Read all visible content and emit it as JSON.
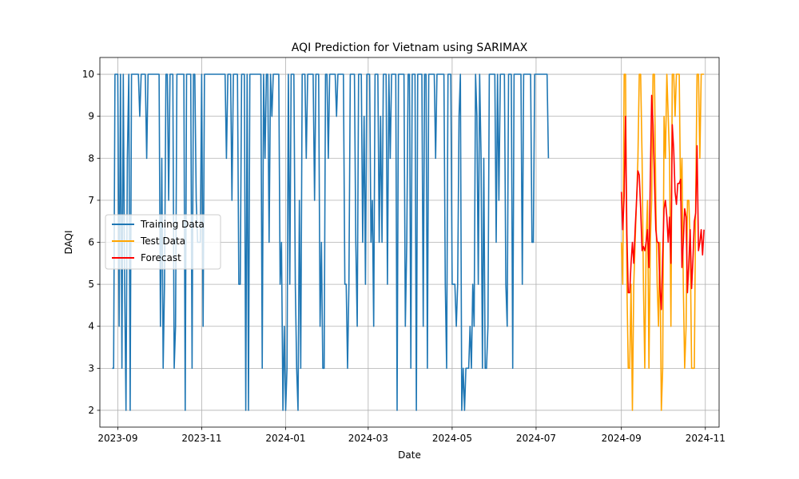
{
  "chart_data": {
    "type": "line",
    "title": "AQI Prediction for Vietnam using SARIMAX",
    "xlabel": "Date",
    "ylabel": "DAQI",
    "ylim": [
      1.6,
      10.4
    ],
    "yticks": [
      2,
      3,
      4,
      5,
      6,
      7,
      8,
      9,
      10
    ],
    "xlim": [
      "2023-08-19",
      "2024-11-11"
    ],
    "xticks": [
      {
        "date": "2023-09-01",
        "label": "2023-09"
      },
      {
        "date": "2023-11-01",
        "label": "2023-11"
      },
      {
        "date": "2024-01-01",
        "label": "2024-01"
      },
      {
        "date": "2024-03-01",
        "label": "2024-03"
      },
      {
        "date": "2024-05-01",
        "label": "2024-05"
      },
      {
        "date": "2024-07-01",
        "label": "2024-07"
      },
      {
        "date": "2024-09-01",
        "label": "2024-09"
      },
      {
        "date": "2024-11-01",
        "label": "2024-11"
      }
    ],
    "grid": true,
    "legend_position": "center-left",
    "series": [
      {
        "name": "Training Data",
        "color": "#1f77b4",
        "start": "2023-08-28",
        "step_days": 1,
        "values": [
          3,
          3,
          10,
          10,
          10,
          4,
          10,
          3,
          10,
          5,
          2,
          8,
          10,
          2,
          10,
          10,
          10,
          10,
          10,
          10,
          9,
          10,
          10,
          10,
          10,
          8,
          10,
          10,
          10,
          10,
          10,
          10,
          10,
          10,
          10,
          4,
          8,
          3,
          5,
          10,
          10,
          7,
          10,
          10,
          10,
          3,
          4,
          10,
          10,
          10,
          10,
          10,
          10,
          2,
          10,
          10,
          10,
          10,
          3,
          10,
          10,
          7,
          6,
          6,
          6,
          10,
          4,
          10,
          10,
          10,
          10,
          10,
          10,
          10,
          10,
          10,
          10,
          10,
          10,
          10,
          10,
          10,
          10,
          8,
          10,
          10,
          10,
          7,
          10,
          10,
          10,
          10,
          5,
          5,
          10,
          10,
          10,
          2,
          10,
          2,
          10,
          10,
          10,
          10,
          10,
          10,
          10,
          10,
          10,
          3,
          10,
          8,
          10,
          10,
          6,
          10,
          9,
          10,
          10,
          10,
          10,
          10,
          5,
          6,
          2,
          4,
          2,
          3,
          10,
          5,
          10,
          10,
          10,
          5,
          3,
          2,
          7,
          3,
          10,
          10,
          10,
          8,
          10,
          10,
          10,
          10,
          10,
          7,
          10,
          10,
          10,
          4,
          6,
          3,
          3,
          10,
          10,
          8,
          10,
          10,
          10,
          10,
          10,
          9,
          10,
          10,
          10,
          10,
          10,
          5,
          5,
          3,
          5,
          10,
          10,
          10,
          10,
          6,
          4,
          10,
          10,
          10,
          6,
          9,
          5,
          10,
          10,
          10,
          6,
          7,
          4,
          10,
          10,
          10,
          6,
          9,
          6,
          10,
          10,
          10,
          5,
          10,
          8,
          10,
          10,
          10,
          10,
          2,
          10,
          10,
          10,
          10,
          10,
          4,
          6,
          10,
          10,
          3,
          10,
          10,
          10,
          2,
          10,
          10,
          10,
          10,
          4,
          10,
          10,
          3,
          10,
          10,
          10,
          10,
          10,
          8,
          10,
          10,
          10,
          10,
          10,
          10,
          5,
          3,
          10,
          10,
          10,
          5,
          5,
          5,
          4,
          5,
          9,
          10,
          2,
          3,
          2,
          3,
          3,
          3,
          4,
          3,
          5,
          4,
          10,
          9,
          5,
          10,
          8,
          3,
          8,
          3,
          3,
          4,
          10,
          10,
          10,
          10,
          10,
          6,
          10,
          7,
          10,
          10,
          10,
          10,
          5,
          4,
          10,
          10,
          10,
          3,
          10,
          10,
          10,
          10,
          10,
          10,
          5,
          10,
          10,
          10,
          10,
          10,
          10,
          6,
          6,
          10,
          10,
          10,
          10,
          10,
          10,
          10,
          10,
          10,
          10,
          8
        ]
      },
      {
        "name": "Test Data",
        "color": "#ffa500",
        "start": "2024-09-01",
        "step_days": 1,
        "values": [
          6,
          5,
          10,
          10,
          5,
          3,
          3,
          5,
          2,
          5,
          6,
          7,
          8,
          10,
          10,
          8,
          5,
          3,
          6,
          7,
          3,
          6,
          7,
          10,
          10,
          7,
          5,
          4,
          6,
          2,
          3,
          9,
          8,
          10,
          9,
          8,
          4,
          10,
          10,
          9,
          10,
          10,
          10,
          7,
          8,
          5,
          3,
          4,
          7,
          7,
          6,
          3,
          3,
          3,
          7,
          10,
          10,
          8,
          10,
          10,
          10
        ]
      },
      {
        "name": "Forecast",
        "color": "#ff0000",
        "start": "2024-09-01",
        "step_days": 1,
        "values": [
          7.2,
          6.3,
          7.1,
          9.0,
          6.2,
          4.8,
          4.8,
          5.5,
          6.0,
          5.5,
          6.3,
          7.0,
          7.7,
          7.6,
          6.8,
          5.8,
          5.9,
          5.8,
          6.0,
          6.3,
          5.4,
          7.5,
          9.5,
          8.8,
          7.5,
          6.3,
          6.0,
          6.0,
          4.9,
          4.4,
          5.7,
          6.8,
          7.0,
          6.6,
          6.0,
          6.6,
          5.5,
          8.8,
          8.2,
          7.2,
          6.9,
          7.4,
          7.4,
          7.5,
          5.4,
          6.0,
          6.8,
          6.6,
          4.8,
          5.5,
          6.3,
          4.9,
          5.6,
          6.5,
          6.7,
          8.3,
          5.8,
          6.0,
          6.3,
          5.7,
          6.3
        ]
      }
    ]
  }
}
